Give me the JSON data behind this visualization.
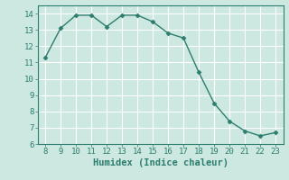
{
  "x": [
    8,
    9,
    10,
    11,
    12,
    13,
    14,
    15,
    16,
    17,
    18,
    19,
    20,
    21,
    22,
    23
  ],
  "y": [
    11.3,
    13.1,
    13.9,
    13.9,
    13.2,
    13.9,
    13.9,
    13.5,
    12.8,
    12.5,
    10.4,
    8.5,
    7.4,
    6.8,
    6.5,
    6.7
  ],
  "xlim": [
    7.5,
    23.5
  ],
  "ylim": [
    6,
    14.5
  ],
  "xticks": [
    8,
    9,
    10,
    11,
    12,
    13,
    14,
    15,
    16,
    17,
    18,
    19,
    20,
    21,
    22,
    23
  ],
  "yticks": [
    6,
    7,
    8,
    9,
    10,
    11,
    12,
    13,
    14
  ],
  "xlabel": "Humidex (Indice chaleur)",
  "line_color": "#2d7d6f",
  "marker": "D",
  "marker_size": 2.5,
  "background_color": "#cce8e0",
  "grid_color": "#ffffff",
  "tick_fontsize": 6.5,
  "xlabel_fontsize": 7.5,
  "linewidth": 1.0
}
